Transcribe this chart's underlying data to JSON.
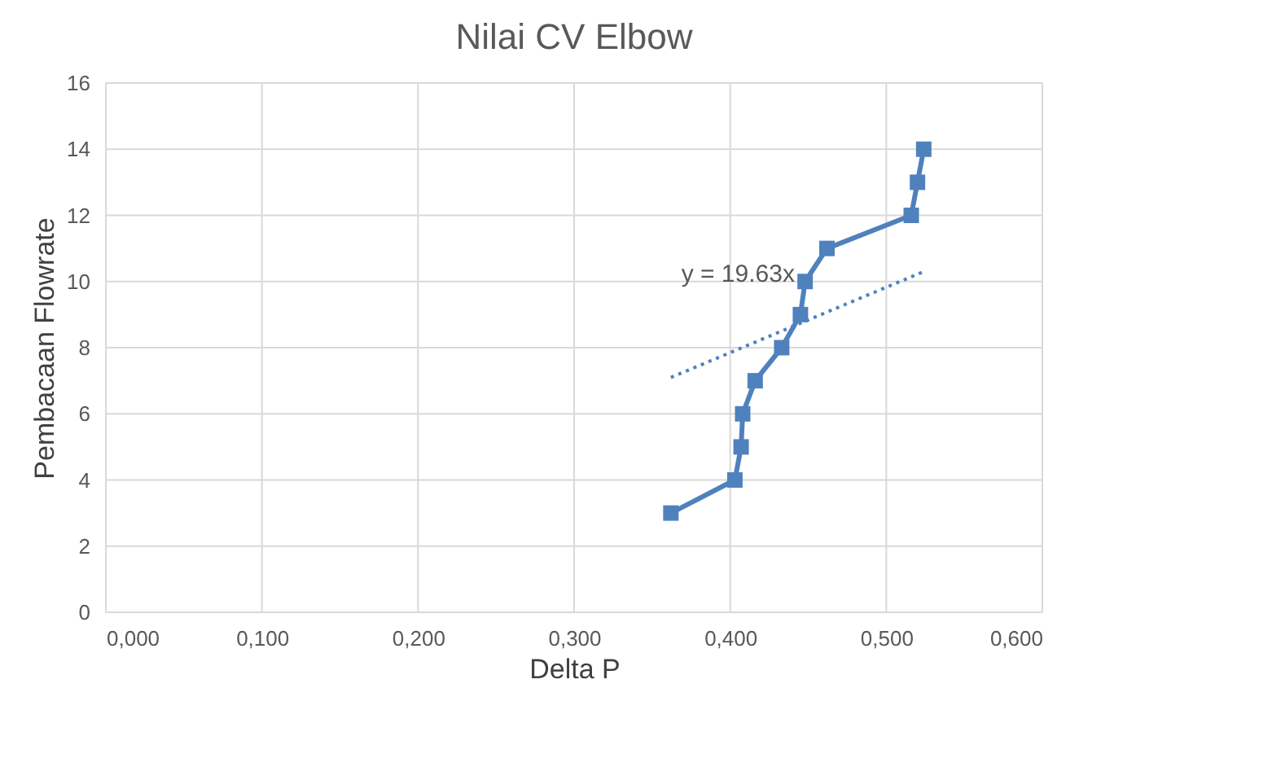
{
  "chart_data": {
    "type": "line",
    "title": "Nilai CV Elbow",
    "xlabel": "Delta P",
    "ylabel": "Pembacaan Flowrate",
    "x": [
      0.362,
      0.403,
      0.407,
      0.408,
      0.416,
      0.433,
      0.445,
      0.448,
      0.462,
      0.516,
      0.52,
      0.524
    ],
    "series": [
      {
        "color": "#4f81bd",
        "values": [
          3,
          4,
          5,
          6,
          7,
          8,
          9,
          10,
          11,
          12,
          13,
          14
        ],
        "marker": "square",
        "line_style": "solid"
      },
      {
        "type": "line",
        "color": "#4f81bd",
        "x": [
          0.362,
          0.524
        ],
        "values": [
          7.1,
          10.3
        ],
        "marker": "none",
        "line_style": "dotted"
      }
    ],
    "annotations": [
      "y = 19.63x"
    ],
    "xlim": [
      0,
      0.6
    ],
    "ylim": [
      0,
      16
    ],
    "xticks": [
      {
        "value": 0,
        "label": "0,000"
      },
      {
        "value": 0.1,
        "label": "0,100"
      },
      {
        "value": 0.2,
        "label": "0,200"
      },
      {
        "value": 0.3,
        "label": "0,300"
      },
      {
        "value": 0.4,
        "label": "0,400"
      },
      {
        "value": 0.5,
        "label": "0,500"
      },
      {
        "value": 0.6,
        "label": "0,600"
      }
    ],
    "yticks": [
      0,
      2,
      4,
      6,
      8,
      10,
      12,
      14,
      16
    ],
    "grid": true
  }
}
